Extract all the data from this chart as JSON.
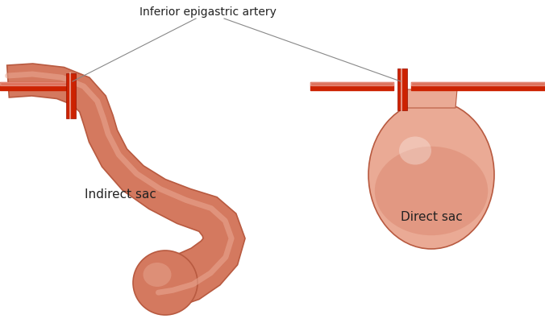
{
  "title": "",
  "bg_color": "#ffffff",
  "label_artery": "Inferior epigastric artery",
  "label_indirect": "Indirect sac",
  "label_direct": "Direct sac",
  "sac_fill_light": "#eaaa95",
  "sac_fill_mid": "#d4795f",
  "sac_fill_dark": "#b85a40",
  "artery_color": "#cc2200",
  "wall_color": "#cc2200",
  "line_color": "#888888",
  "font_size_label": 11,
  "font_size_artery": 10
}
